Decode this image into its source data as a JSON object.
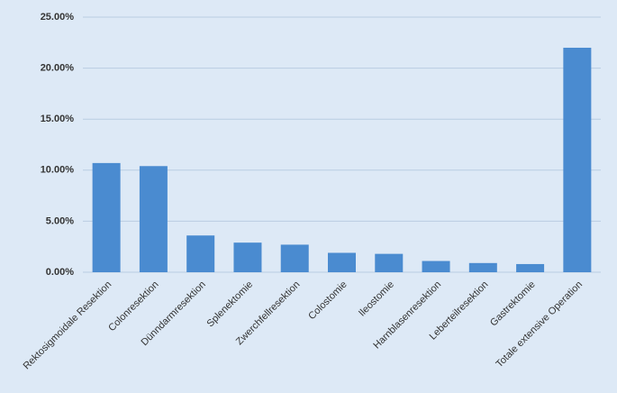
{
  "chart_data": {
    "type": "bar",
    "categories": [
      "Rektosigmoidale Resektion",
      "Colonresektion",
      "Dünndarmresektion",
      "Splenektomie",
      "Zwerchfellresektion",
      "Colostomie",
      "Ileostomie",
      "Harnblasenresektion",
      "Leberteilresektion",
      "Gastrektomie",
      "Totale extensive Operation"
    ],
    "values": [
      10.7,
      10.4,
      3.6,
      2.9,
      2.7,
      1.9,
      1.8,
      1.1,
      0.9,
      0.8,
      22.0
    ],
    "color": "#4a8bd0",
    "ylim": [
      0,
      25
    ],
    "yticks": [
      {
        "value": 0,
        "label": "0.00%"
      },
      {
        "value": 5,
        "label": "5.00%"
      },
      {
        "value": 10,
        "label": "10.00%"
      },
      {
        "value": 15,
        "label": "15.00%"
      },
      {
        "value": 20,
        "label": "20.00%"
      },
      {
        "value": 25,
        "label": "25.00%"
      }
    ],
    "grid": true
  }
}
